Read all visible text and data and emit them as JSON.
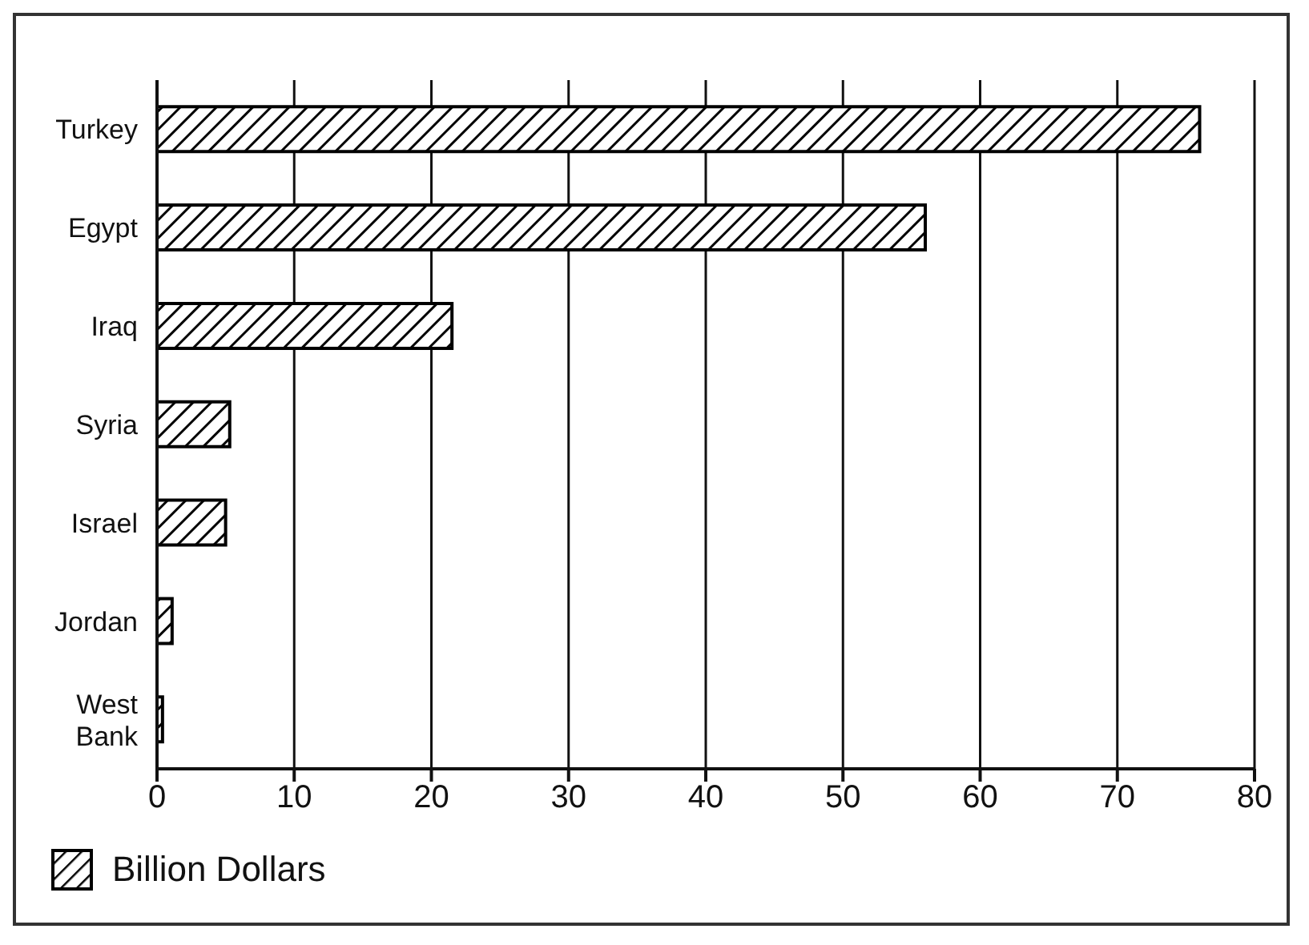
{
  "chart_data": {
    "type": "bar",
    "orientation": "horizontal",
    "categories": [
      "Turkey",
      "Egypt",
      "Iraq",
      "Syria",
      "Israel",
      "Jordan",
      "West Bank"
    ],
    "series": [
      {
        "name": "Billion Dollars",
        "color": "#000000",
        "values": [
          76,
          56,
          21.5,
          5.3,
          5.0,
          1.1,
          0.4
        ]
      }
    ],
    "xlim": [
      0,
      80
    ],
    "xticks": [
      0,
      10,
      20,
      30,
      40,
      50,
      60,
      70,
      80
    ],
    "grid": "x",
    "legend": "bottom left"
  }
}
